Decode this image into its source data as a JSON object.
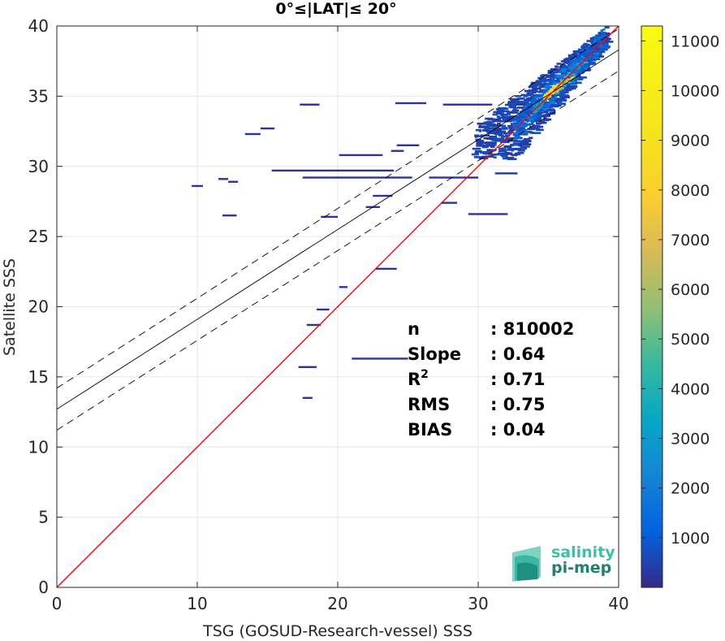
{
  "chart_data": {
    "type": "heatmap",
    "title": "0°≤|LAT|≤ 20°",
    "xlabel": "TSG (GOSUD-Research-vessel) SSS",
    "ylabel": "Satellite SSS",
    "xlim": [
      0,
      40
    ],
    "ylim": [
      0,
      40
    ],
    "x_ticks": [
      0,
      10,
      20,
      30,
      40
    ],
    "y_ticks": [
      0,
      5,
      10,
      15,
      20,
      25,
      30,
      35,
      40
    ],
    "grid": true,
    "colormap": "parula",
    "colorbar": {
      "ticks": [
        1000,
        2000,
        3000,
        4000,
        5000,
        6000,
        7000,
        8000,
        9000,
        10000,
        11000
      ],
      "min": 0,
      "max": 11300
    },
    "lines": {
      "identity": {
        "slope": 1.0,
        "intercept": 0.0,
        "color": "#ff0000"
      },
      "regression": {
        "slope": 0.64,
        "intercept": 12.7,
        "color": "#000000"
      },
      "upper_bound": {
        "slope": 0.64,
        "intercept": 14.2,
        "color": "#000000",
        "dashed": true
      },
      "lower_bound": {
        "slope": 0.64,
        "intercept": 11.2,
        "color": "#000000",
        "dashed": true
      }
    },
    "stats": [
      {
        "label": "n",
        "sup": "",
        "value": ": 810002"
      },
      {
        "label": "Slope",
        "sup": "",
        "value": ": 0.64"
      },
      {
        "label": "R",
        "sup": "2",
        "value": ": 0.71"
      },
      {
        "label": "RMS",
        "sup": "",
        "value": ": 0.75"
      },
      {
        "label": "BIAS",
        "sup": "",
        "value": ": 0.04"
      }
    ],
    "density": {
      "core": {
        "x": 35.0,
        "y": 35.2,
        "peak": 11000
      },
      "clusters": [
        {
          "x": 36.0,
          "y": 36.0,
          "peak": 9000
        },
        {
          "x": 34.0,
          "y": 34.2,
          "peak": 4000
        },
        {
          "x": 37.0,
          "y": 37.2,
          "peak": 3500
        },
        {
          "x": 33.0,
          "y": 33.6,
          "peak": 1500
        },
        {
          "x": 38.0,
          "y": 38.3,
          "peak": 1200
        }
      ],
      "sparse_segments": [
        {
          "x1": 17.3,
          "x2": 18.7,
          "y": 34.4
        },
        {
          "x1": 24.1,
          "x2": 26.3,
          "y": 34.5
        },
        {
          "x1": 13.4,
          "x2": 14.5,
          "y": 32.3
        },
        {
          "x1": 14.5,
          "x2": 15.5,
          "y": 32.7
        },
        {
          "x1": 15.3,
          "x2": 24.0,
          "y": 29.7
        },
        {
          "x1": 17.5,
          "x2": 25.3,
          "y": 29.2
        },
        {
          "x1": 9.6,
          "x2": 10.4,
          "y": 28.6
        },
        {
          "x1": 11.5,
          "x2": 12.2,
          "y": 29.1
        },
        {
          "x1": 12.2,
          "x2": 12.9,
          "y": 28.9
        },
        {
          "x1": 11.8,
          "x2": 12.8,
          "y": 26.5
        },
        {
          "x1": 18.8,
          "x2": 20.0,
          "y": 26.4
        },
        {
          "x1": 20.1,
          "x2": 23.2,
          "y": 30.8
        },
        {
          "x1": 23.8,
          "x2": 24.7,
          "y": 31.1
        },
        {
          "x1": 24.2,
          "x2": 25.8,
          "y": 31.5
        },
        {
          "x1": 27.4,
          "x2": 28.5,
          "y": 27.4
        },
        {
          "x1": 29.3,
          "x2": 32.1,
          "y": 26.6
        },
        {
          "x1": 22.0,
          "x2": 23.0,
          "y": 27.1
        },
        {
          "x1": 22.5,
          "x2": 23.9,
          "y": 27.9
        },
        {
          "x1": 22.7,
          "x2": 24.2,
          "y": 22.7
        },
        {
          "x1": 20.1,
          "x2": 20.7,
          "y": 21.4
        },
        {
          "x1": 18.5,
          "x2": 19.4,
          "y": 19.8
        },
        {
          "x1": 17.8,
          "x2": 18.8,
          "y": 18.7
        },
        {
          "x1": 17.2,
          "x2": 18.5,
          "y": 15.7
        },
        {
          "x1": 17.5,
          "x2": 18.2,
          "y": 13.5
        },
        {
          "x1": 21.0,
          "x2": 25.0,
          "y": 16.3
        },
        {
          "x1": 26.5,
          "x2": 30.0,
          "y": 29.2
        },
        {
          "x1": 27.5,
          "x2": 31.0,
          "y": 34.4
        },
        {
          "x1": 31.2,
          "x2": 32.8,
          "y": 29.5
        }
      ]
    }
  },
  "logo": {
    "line1": "salinity",
    "line2": "pi-mep"
  }
}
